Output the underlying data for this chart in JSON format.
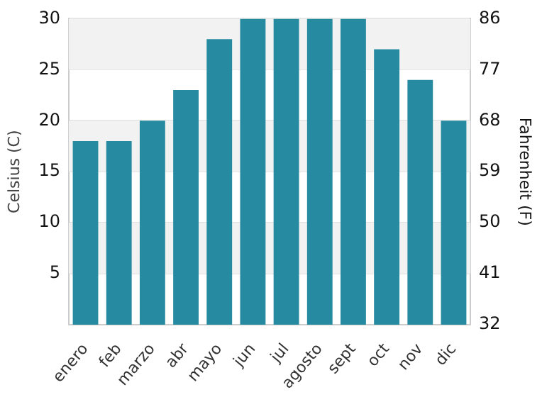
{
  "chart_data": {
    "type": "bar",
    "categories": [
      "enero",
      "feb",
      "marzo",
      "abr",
      "mayo",
      "jun",
      "jul",
      "agosto",
      "sept",
      "oct",
      "nov",
      "dic"
    ],
    "series": [
      {
        "color": "#268ba0",
        "values": [
          18,
          18,
          20,
          23,
          28,
          30,
          30,
          30,
          30,
          27,
          24,
          20
        ]
      }
    ],
    "ylabel": "Celsius (C)",
    "y2label": "Fahrenheit (F)",
    "ylim": [
      0,
      30
    ],
    "yticks": [
      5,
      10,
      15,
      20,
      25,
      30
    ],
    "y2lim": [
      32,
      86
    ],
    "y2ticks": [
      32,
      41,
      50,
      59,
      68,
      77,
      86
    ],
    "bands": [
      {
        "axis": "y",
        "from": 5,
        "to": 10,
        "color": "#f2f2f2"
      },
      {
        "axis": "y",
        "from": 15,
        "to": 20,
        "color": "#f2f2f2"
      },
      {
        "axis": "y",
        "from": 25,
        "to": 30,
        "color": "#f2f2f2"
      }
    ],
    "grid": "y",
    "legend": false
  }
}
